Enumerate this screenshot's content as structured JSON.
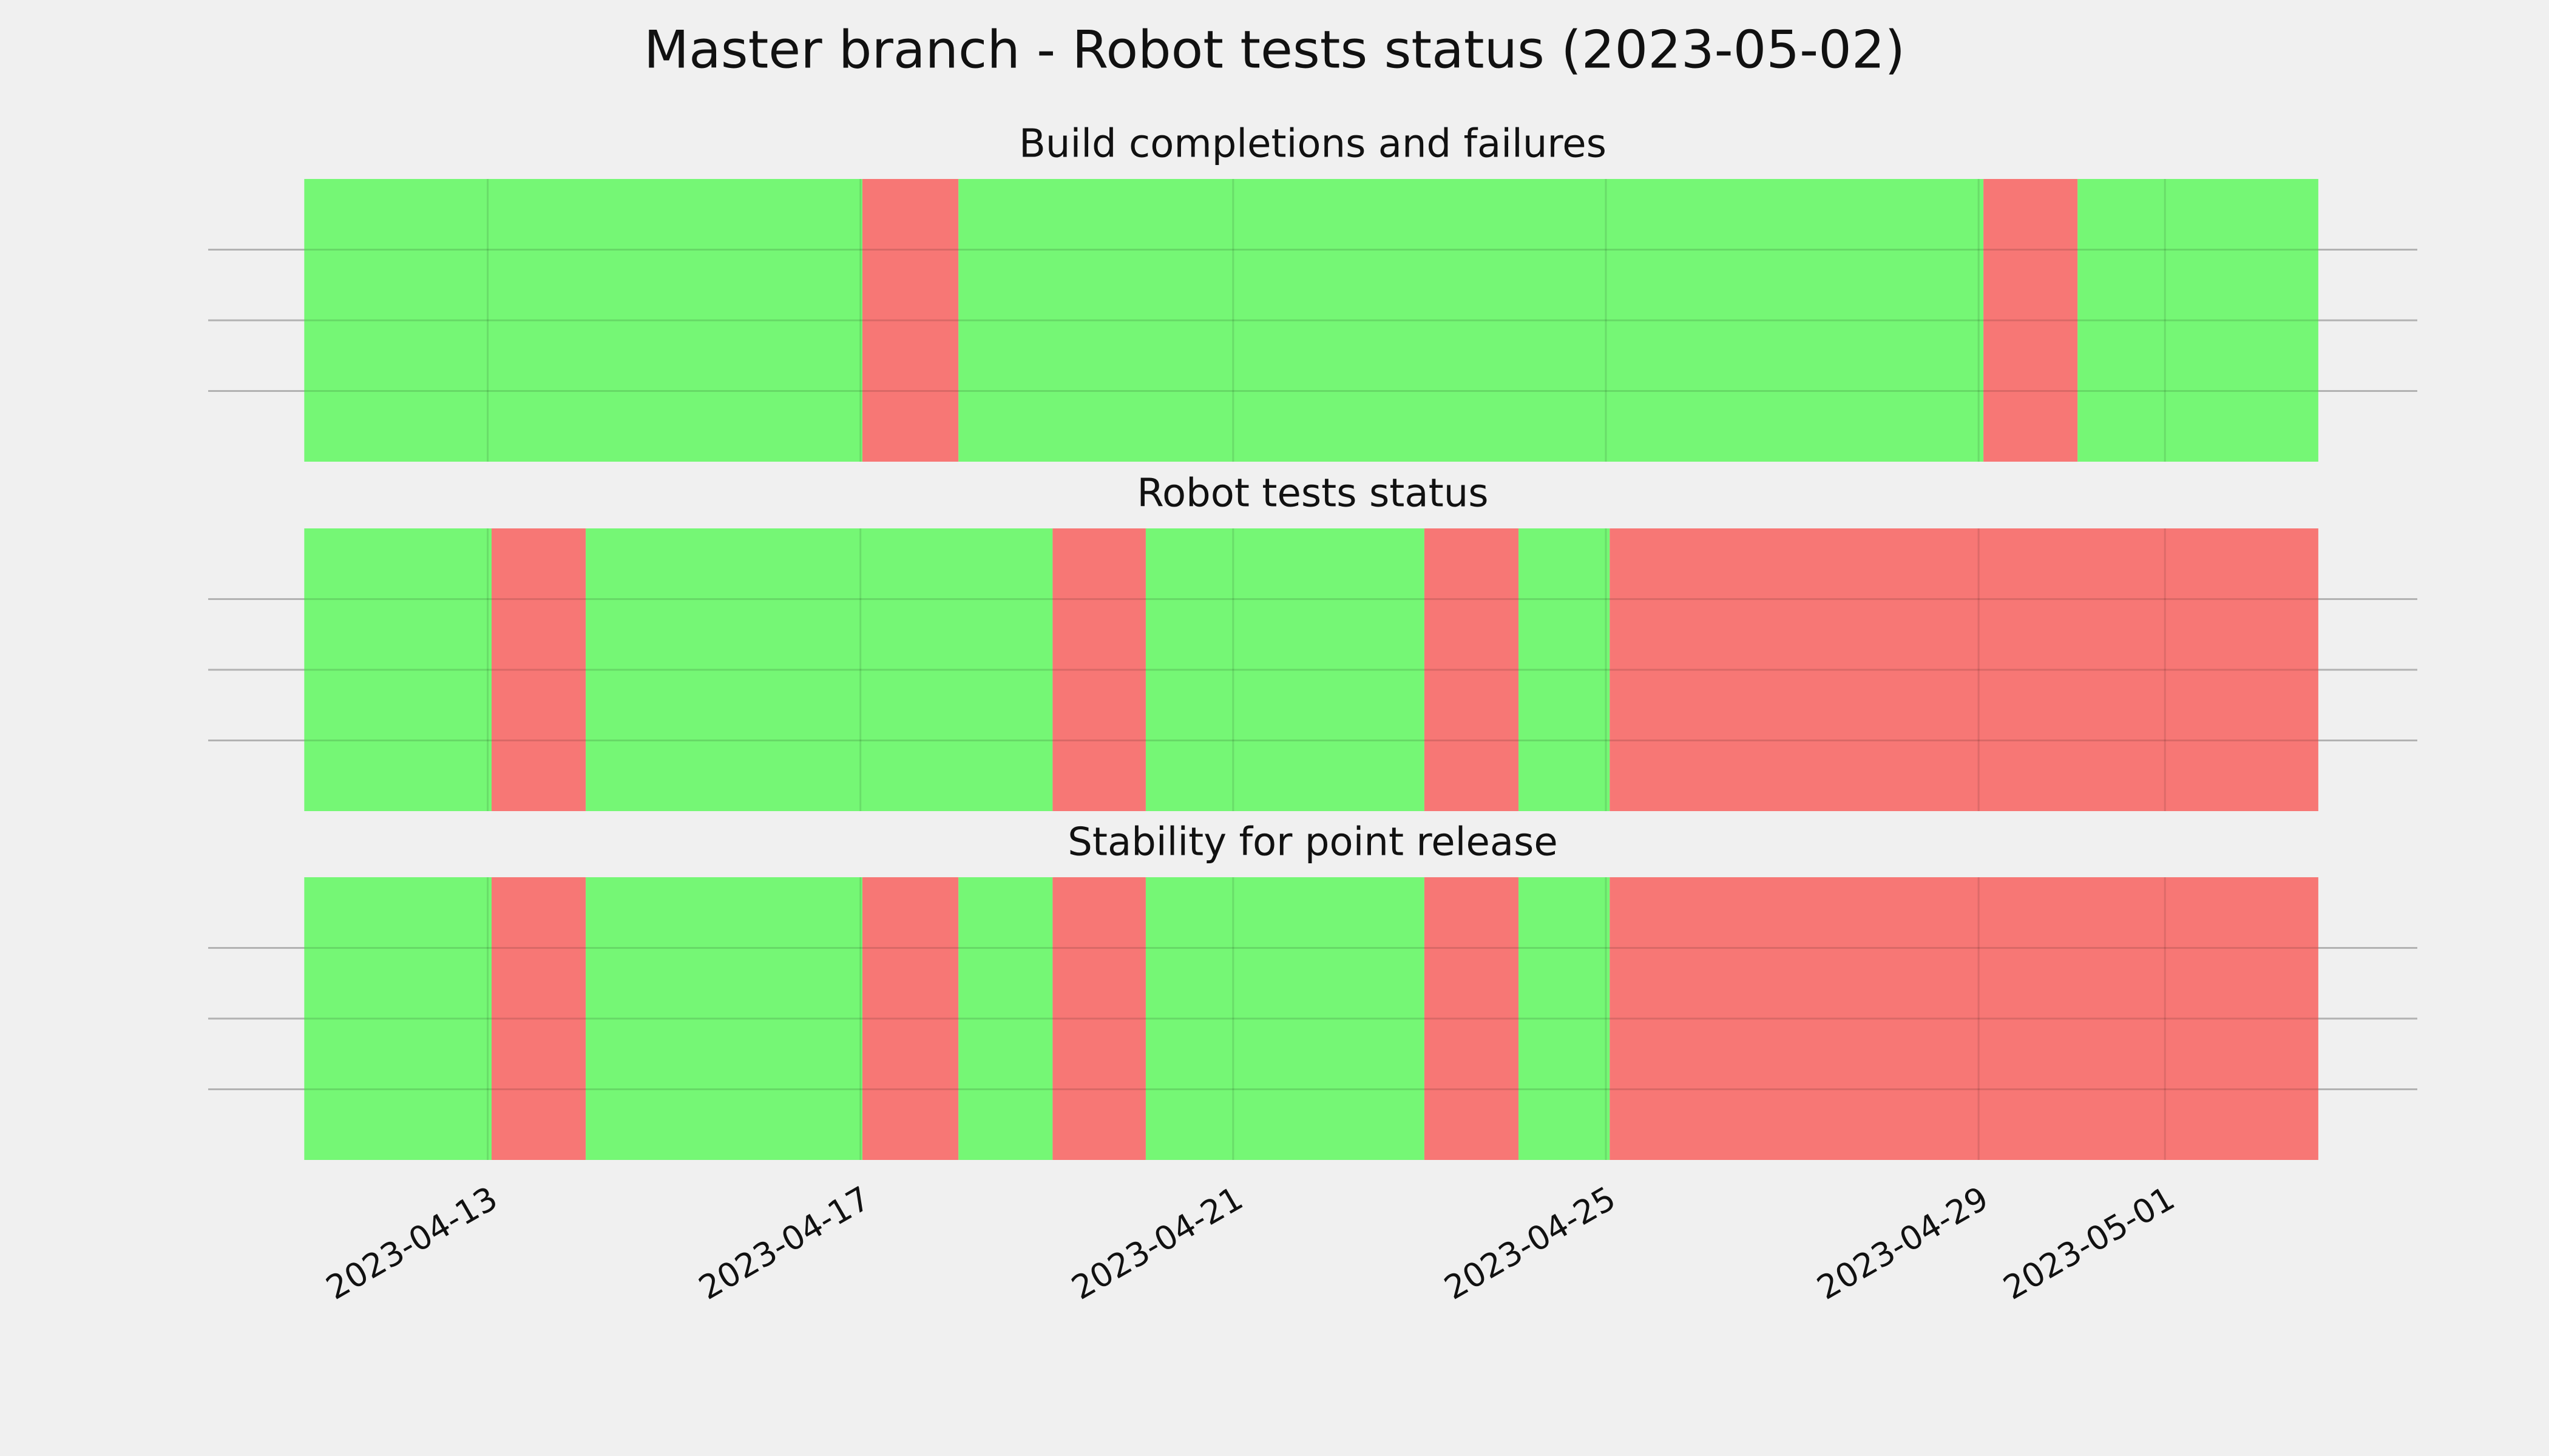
{
  "title": "Master branch - Robot tests status (2023-05-02)",
  "chart_data": [
    {
      "type": "timeline",
      "title": "Build completions and failures",
      "x": [
        "2023-04-11T00:45",
        "2023-04-17T00:30",
        "2023-04-18T01:15",
        "2023-04-29T01:15",
        "2023-04-30T01:30",
        "2023-05-02T15:30"
      ],
      "colors": [
        "#75f775",
        "#f77775",
        "#75f775",
        "#f77775",
        "#75f775"
      ],
      "xlim": [
        "2023-04-10T00:00",
        "2023-05-03T17:00"
      ],
      "xticks": [
        "2023-04-13",
        "2023-04-17",
        "2023-04-21",
        "2023-04-25",
        "2023-04-29",
        "2023-05-01"
      ]
    },
    {
      "type": "timeline",
      "title": "Robot tests status",
      "x": [
        "2023-04-11T00:45",
        "2023-04-13T01:00",
        "2023-04-14T01:15",
        "2023-04-19T01:30",
        "2023-04-20T01:30",
        "2023-04-23T01:15",
        "2023-04-24T01:30",
        "2023-04-25T01:00",
        "2023-05-02T15:30"
      ],
      "colors": [
        "#75f775",
        "#f77775",
        "#75f775",
        "#f77775",
        "#75f775",
        "#f77775",
        "#75f775",
        "#f77775"
      ],
      "xlim": [
        "2023-04-10T00:00",
        "2023-05-03T17:00"
      ],
      "xticks": [
        "2023-04-13",
        "2023-04-17",
        "2023-04-21",
        "2023-04-25",
        "2023-04-29",
        "2023-05-01"
      ]
    },
    {
      "type": "timeline",
      "title": "Stability for point release",
      "x": [
        "2023-04-11T00:45",
        "2023-04-13T01:00",
        "2023-04-14T01:15",
        "2023-04-17T00:30",
        "2023-04-18T01:15",
        "2023-04-19T01:30",
        "2023-04-20T01:30",
        "2023-04-23T01:15",
        "2023-04-24T01:30",
        "2023-04-25T01:00",
        "2023-05-02T15:30"
      ],
      "colors": [
        "#75f775",
        "#f77775",
        "#75f775",
        "#f77775",
        "#75f775",
        "#f77775",
        "#75f775",
        "#f77775",
        "#75f775",
        "#f77775"
      ],
      "xlim": [
        "2023-04-10T00:00",
        "2023-05-03T17:00"
      ],
      "xticks": [
        "2023-04-13",
        "2023-04-17",
        "2023-04-21",
        "2023-04-25",
        "2023-04-29",
        "2023-05-01"
      ],
      "show_xtick_labels": true
    }
  ]
}
